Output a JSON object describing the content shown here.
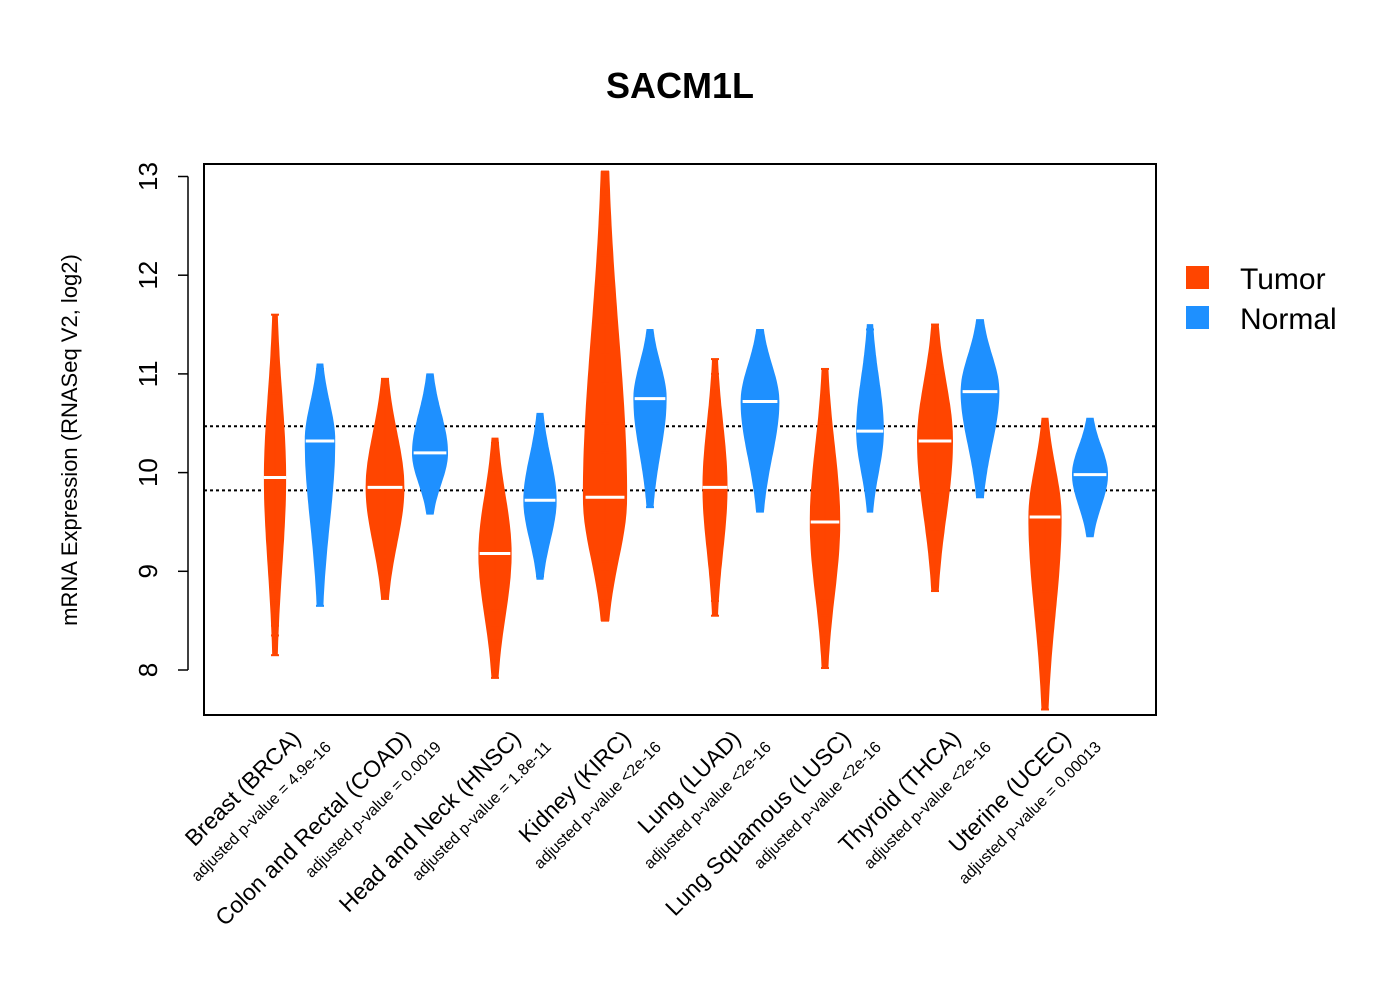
{
  "chart_data": {
    "type": "violin",
    "title": "SACM1L",
    "ylabel": "mRNA Expression (RNASeq V2, log2)",
    "ylim": [
      7.55,
      13.15
    ],
    "yticks": [
      8,
      9,
      10,
      11,
      12,
      13
    ],
    "reference_lines": [
      9.82,
      10.47
    ],
    "legend_position": "right",
    "series": [
      {
        "name": "Tumor",
        "color": "#FF4500"
      },
      {
        "name": "Normal",
        "color": "#1E90FF"
      }
    ],
    "categories": [
      {
        "label": "Breast (BRCA)",
        "pvalue": "adjusted p-value = 4.9e-16",
        "tumor": {
          "median": 9.95,
          "min": 8.15,
          "max": 11.6,
          "width": 0.35,
          "outliers": [
            8.15,
            8.35,
            8.45,
            8.55,
            8.6,
            8.7,
            8.8,
            8.9,
            9.0,
            9.1,
            10.7,
            10.8,
            10.9,
            11.0,
            11.3,
            11.6
          ]
        },
        "normal": {
          "median": 10.32,
          "min": 8.65,
          "max": 11.1,
          "width": 0.5,
          "outliers": [
            8.65,
            9.3,
            11.05
          ]
        }
      },
      {
        "label": "Colon and Rectal (COAD)",
        "pvalue": "adjusted p-value = 0.0019",
        "tumor": {
          "median": 9.85,
          "min": 8.72,
          "max": 10.95,
          "width": 0.65,
          "outliers": [
            8.72,
            8.85,
            9.0,
            9.15,
            10.7,
            10.85,
            10.95
          ]
        },
        "normal": {
          "median": 10.2,
          "min": 9.58,
          "max": 11.0,
          "width": 0.6,
          "outliers": [
            9.6,
            10.95
          ]
        }
      },
      {
        "label": "Head and Neck (HNSC)",
        "pvalue": "adjusted p-value = 1.8e-11",
        "tumor": {
          "median": 9.18,
          "min": 7.92,
          "max": 10.35,
          "width": 0.55,
          "outliers": [
            7.92,
            8.1,
            8.3,
            8.45,
            8.6,
            10.0,
            10.15,
            10.3
          ]
        },
        "normal": {
          "median": 9.72,
          "min": 8.92,
          "max": 10.6,
          "width": 0.55,
          "outliers": [
            8.95,
            9.08,
            10.55
          ]
        }
      },
      {
        "label": "Kidney (KIRC)",
        "pvalue": "adjusted p-value <2e-16",
        "tumor": {
          "median": 9.75,
          "min": 8.5,
          "max": 13.05,
          "width": 0.75,
          "outliers": [
            8.5,
            8.7,
            8.85,
            9.0,
            9.1,
            10.2,
            10.5,
            10.9,
            11.2,
            11.5,
            11.9,
            12.2,
            12.5,
            12.8,
            13.05
          ]
        },
        "normal": {
          "median": 10.75,
          "min": 9.65,
          "max": 11.45,
          "width": 0.55,
          "outliers": [
            9.65,
            10.1,
            11.4
          ]
        }
      },
      {
        "label": "Lung (LUAD)",
        "pvalue": "adjusted p-value <2e-16",
        "tumor": {
          "median": 9.85,
          "min": 8.55,
          "max": 11.15,
          "width": 0.4,
          "outliers": [
            8.55,
            8.7,
            8.85,
            9.0,
            10.7,
            10.85,
            11.0,
            11.15
          ]
        },
        "normal": {
          "median": 10.72,
          "min": 9.6,
          "max": 11.45,
          "width": 0.65,
          "outliers": [
            9.9,
            10.1,
            11.3,
            11.4
          ]
        }
      },
      {
        "label": "Lung Squamous (LUSC)",
        "pvalue": "adjusted p-value <2e-16",
        "tumor": {
          "median": 9.5,
          "min": 8.02,
          "max": 11.05,
          "width": 0.5,
          "outliers": [
            8.02,
            8.35,
            8.55,
            8.7,
            10.3,
            10.5,
            10.7,
            10.8,
            11.05
          ]
        },
        "normal": {
          "median": 10.42,
          "min": 9.6,
          "max": 11.5,
          "width": 0.45,
          "outliers": [
            9.75,
            11.3,
            11.45
          ]
        }
      },
      {
        "label": "Thyroid (THCA)",
        "pvalue": "adjusted p-value <2e-16",
        "tumor": {
          "median": 10.32,
          "min": 8.8,
          "max": 11.5,
          "width": 0.6,
          "outliers": [
            8.8,
            9.2,
            9.4,
            9.6,
            9.8,
            11.0,
            11.2,
            11.5
          ]
        },
        "normal": {
          "median": 10.82,
          "min": 9.75,
          "max": 11.55,
          "width": 0.65,
          "outliers": [
            9.75,
            10.15,
            11.4,
            11.5
          ]
        }
      },
      {
        "label": "Uterine (UCEC)",
        "pvalue": "adjusted p-value = 0.00013",
        "tumor": {
          "median": 9.55,
          "min": 7.6,
          "max": 10.55,
          "width": 0.55,
          "outliers": [
            7.6,
            7.75,
            8.25,
            8.4,
            8.6,
            8.8
          ]
        },
        "normal": {
          "median": 9.98,
          "min": 9.35,
          "max": 10.55,
          "width": 0.6,
          "outliers": [
            9.4,
            10.5
          ]
        }
      }
    ]
  }
}
